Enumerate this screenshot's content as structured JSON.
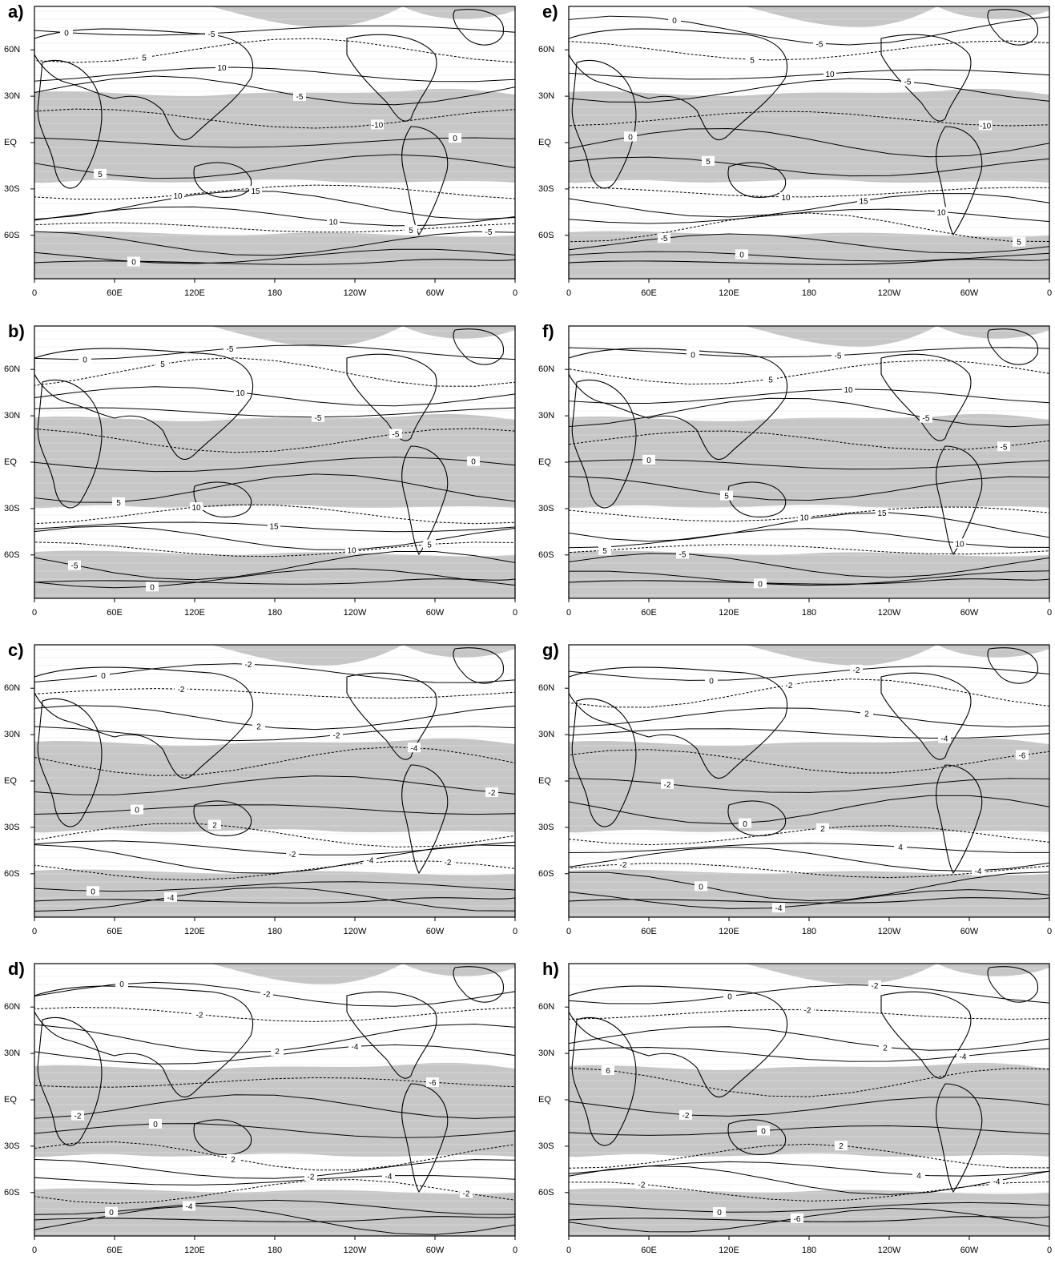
{
  "panels": [
    {
      "id": "a",
      "label": "a)"
    },
    {
      "id": "b",
      "label": "b)"
    },
    {
      "id": "c",
      "label": "c)"
    },
    {
      "id": "d",
      "label": "d)"
    },
    {
      "id": "e",
      "label": "e)"
    },
    {
      "id": "f",
      "label": "f)"
    },
    {
      "id": "g",
      "label": "g)"
    },
    {
      "id": "h",
      "label": "h)"
    }
  ],
  "x_ticks": [
    "0",
    "60E",
    "120E",
    "180",
    "120W",
    "60W",
    "0"
  ],
  "y_ticks": [
    "60N",
    "30N",
    "EQ",
    "30S",
    "60S"
  ],
  "map_style": {
    "shade_color": "#c6c6c6",
    "contour_color": "#000000",
    "background": "#ffffff",
    "negative_contours": "dashed",
    "positive_contours": "solid"
  },
  "contour_labels": {
    "a": [
      "0",
      "5",
      "10",
      "-5",
      "-10",
      "0",
      "5",
      "10",
      "15",
      "10",
      "5",
      "-5",
      "0",
      "-5"
    ],
    "b": [
      "0",
      "5",
      "10",
      "-5",
      "-5",
      "0",
      "5",
      "10",
      "15",
      "10",
      "5",
      "-5",
      "0",
      "-5"
    ],
    "c": [
      "0",
      "-2",
      "2",
      "-2",
      "-4",
      "-2",
      "0",
      "2",
      "-2",
      "-4",
      "-2",
      "0",
      "-4",
      "-2"
    ],
    "d": [
      "0",
      "-2",
      "2",
      "-4",
      "-6",
      "-2",
      "0",
      "2",
      "-2",
      "-4",
      "-2",
      "0",
      "-4",
      "-2"
    ],
    "e": [
      "0",
      "5",
      "10",
      "-5",
      "-10",
      "0",
      "5",
      "10",
      "15",
      "10",
      "5",
      "-5",
      "0",
      "-5"
    ],
    "f": [
      "0",
      "5",
      "10",
      "-5",
      "-5",
      "0",
      "5",
      "10",
      "15",
      "10",
      "5",
      "-5",
      "0",
      "-5"
    ],
    "g": [
      "0",
      "-2",
      "2",
      "-4",
      "-6",
      "-2",
      "0",
      "2",
      "4",
      "-4",
      "-2",
      "0",
      "-4",
      "-2"
    ],
    "h": [
      "0",
      "-2",
      "2",
      "-4",
      "6",
      "-2",
      "0",
      "2",
      "4",
      "-4",
      "-2",
      "0",
      "-6",
      "-2"
    ]
  }
}
